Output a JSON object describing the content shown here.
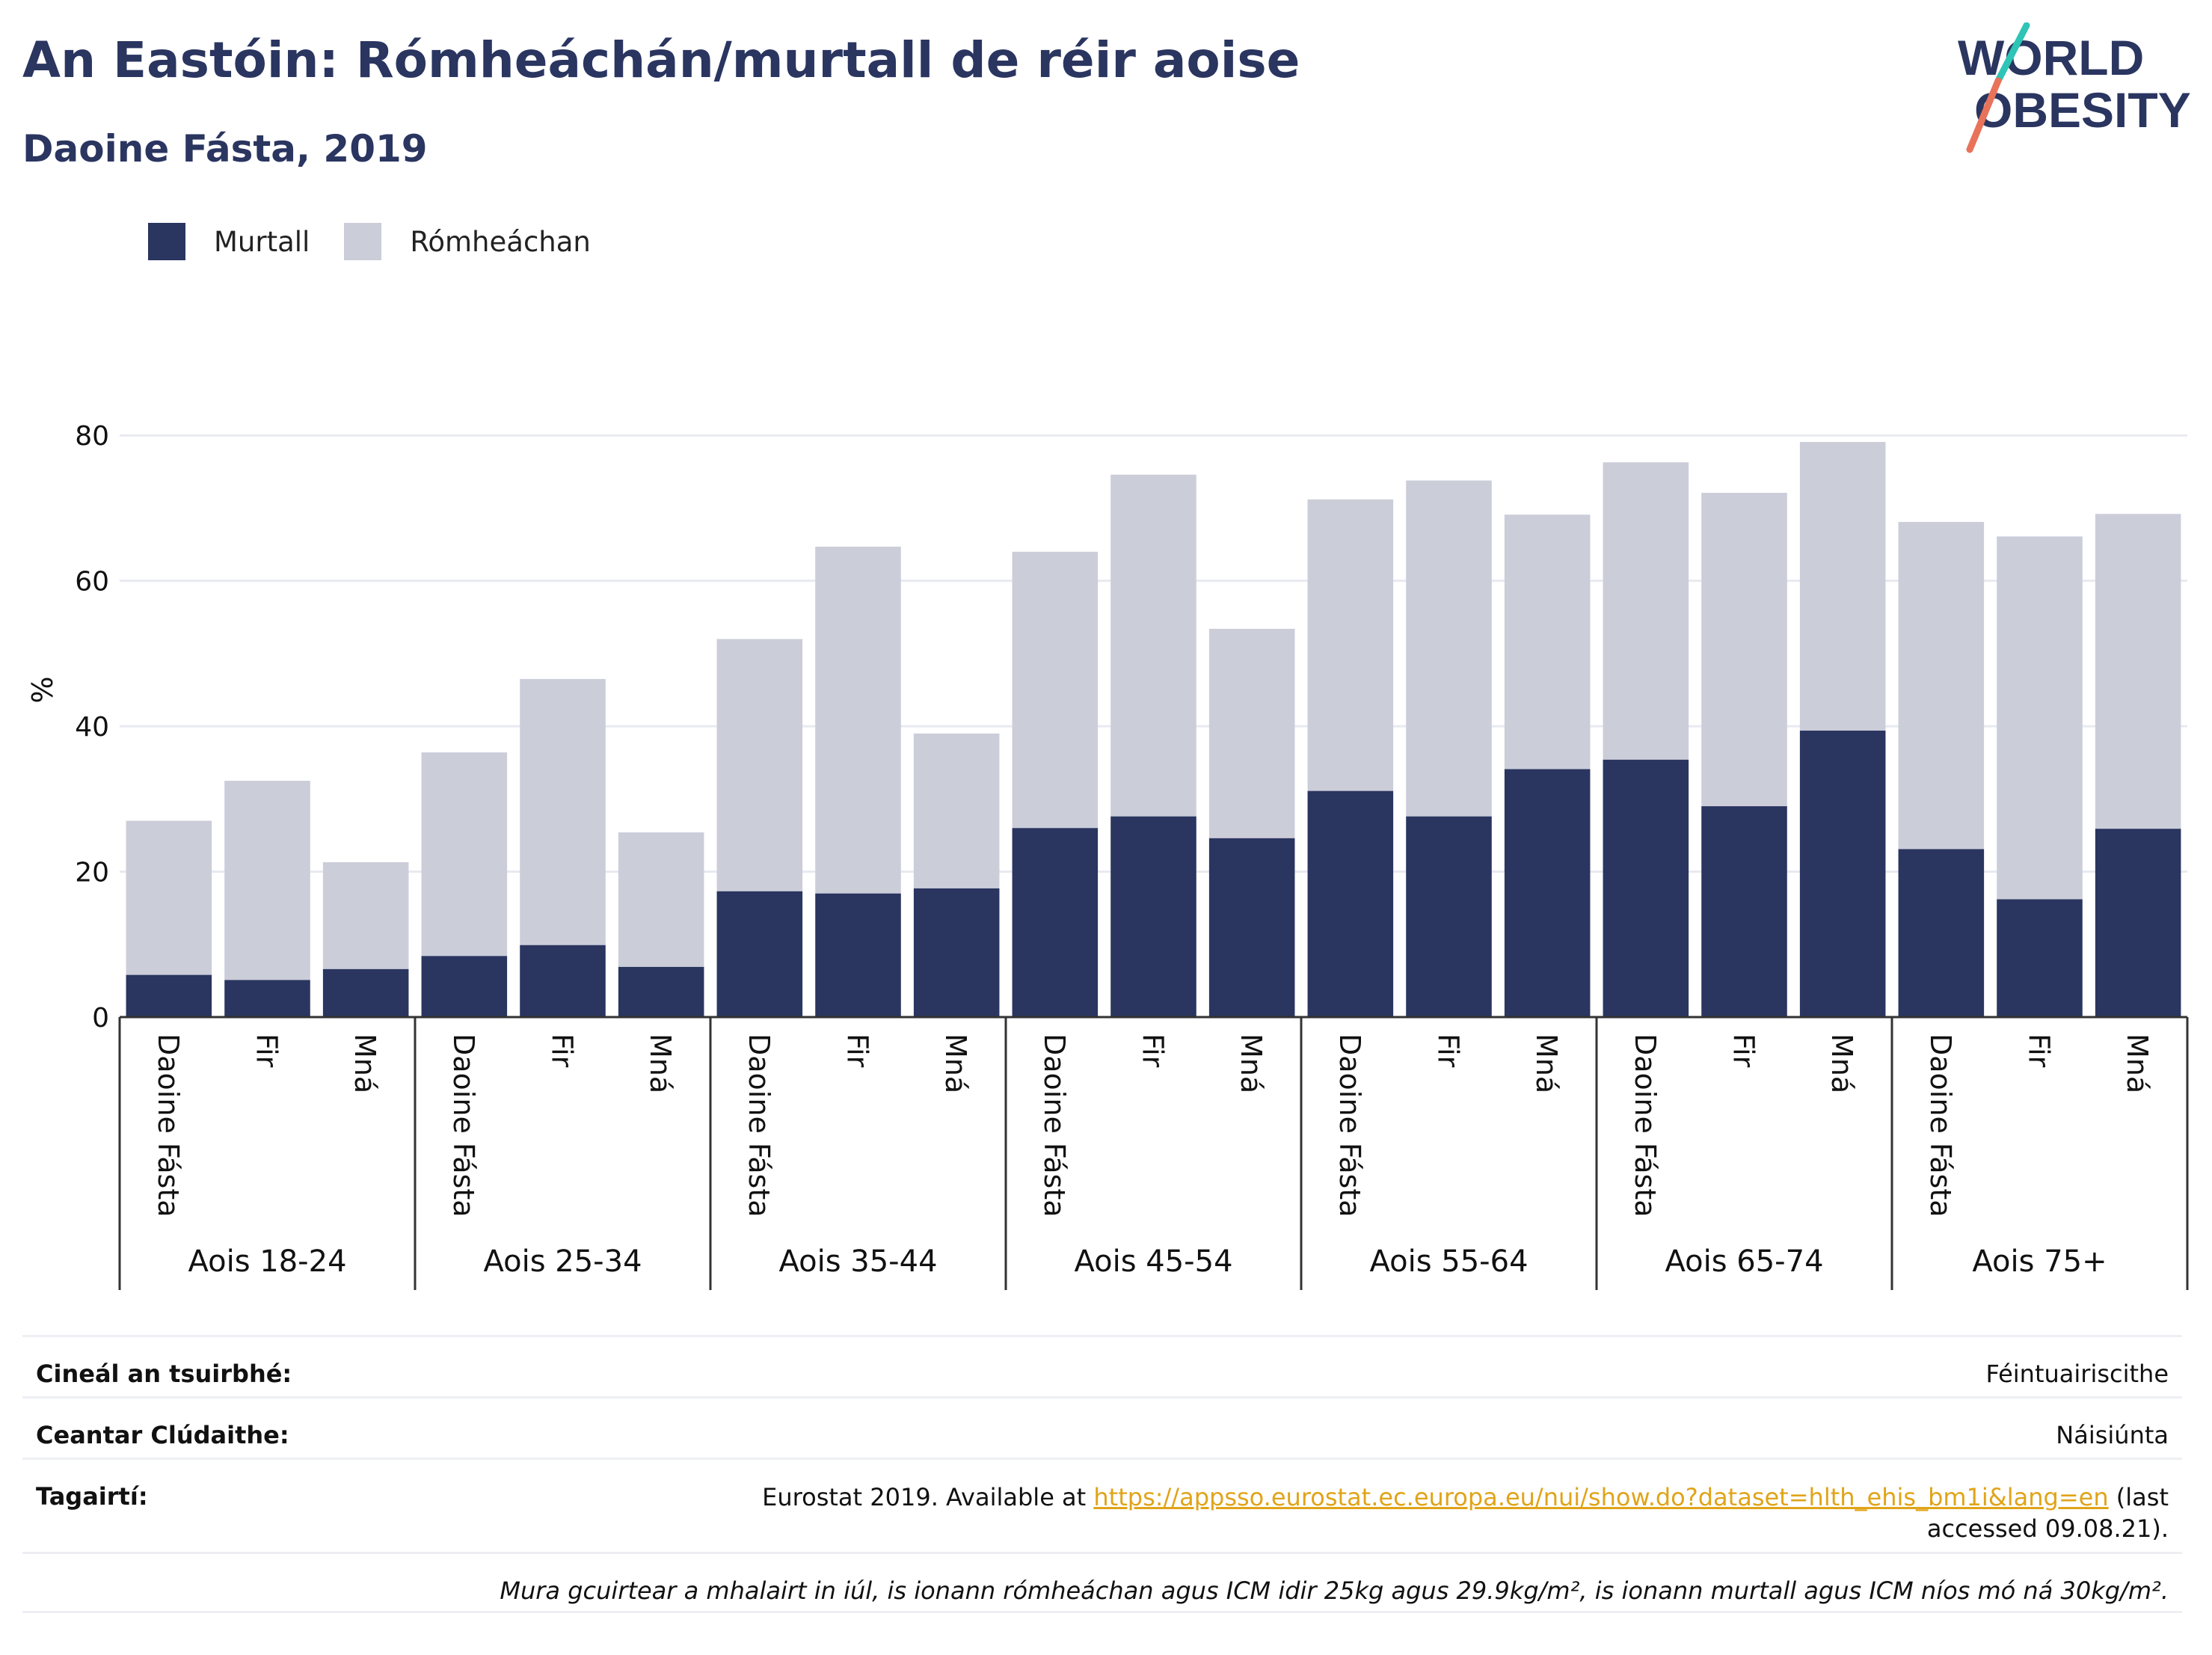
{
  "header": {
    "title": "An Eastóin: Rómheáchán/murtall de réir aoise",
    "subtitle": "Daoine Fásta, 2019"
  },
  "logo": {
    "line1": "WORLD",
    "line2": "OBESITY",
    "slash_colors": [
      "#2ec4b6",
      "#e8735a"
    ]
  },
  "legend": {
    "items": [
      {
        "label": "Murtall",
        "color": "#2a3560"
      },
      {
        "label": "Rómheáchan",
        "color": "#cbcdd9"
      }
    ]
  },
  "chart_data": {
    "type": "bar",
    "stacked": true,
    "ylabel": "%",
    "ylim": [
      0,
      90
    ],
    "yticks": [
      0,
      20,
      40,
      60,
      80
    ],
    "grid": true,
    "legend_position": "top-left",
    "groups": [
      {
        "label": "Aois 18-24",
        "categories": [
          "Daoine Fásta",
          "Fir",
          "Mná"
        ],
        "obesity": [
          5.8,
          5.1,
          6.6
        ],
        "overweight": [
          21.2,
          27.4,
          14.7
        ]
      },
      {
        "label": "Aois 25-34",
        "categories": [
          "Daoine Fásta",
          "Fir",
          "Mná"
        ],
        "obesity": [
          8.4,
          9.9,
          6.9
        ],
        "overweight": [
          28.0,
          36.6,
          18.5
        ]
      },
      {
        "label": "Aois 35-44",
        "categories": [
          "Daoine Fásta",
          "Fir",
          "Mná"
        ],
        "obesity": [
          17.3,
          17.0,
          17.7
        ],
        "overweight": [
          34.7,
          47.7,
          21.3
        ]
      },
      {
        "label": "Aois 45-54",
        "categories": [
          "Daoine Fásta",
          "Fir",
          "Mná"
        ],
        "obesity": [
          26.0,
          27.6,
          24.6
        ],
        "overweight": [
          38.0,
          47.0,
          28.8
        ]
      },
      {
        "label": "Aois 55-64",
        "categories": [
          "Daoine Fásta",
          "Fir",
          "Mná"
        ],
        "obesity": [
          31.1,
          27.6,
          34.1
        ],
        "overweight": [
          40.1,
          46.2,
          35.0
        ]
      },
      {
        "label": "Aois 65-74",
        "categories": [
          "Daoine Fásta",
          "Fir",
          "Mná"
        ],
        "obesity": [
          35.4,
          29.0,
          39.4
        ],
        "overweight": [
          40.9,
          43.1,
          39.7
        ]
      },
      {
        "label": "Aois 75+",
        "categories": [
          "Daoine Fásta",
          "Fir",
          "Mná"
        ],
        "obesity": [
          23.1,
          16.2,
          25.9
        ],
        "overweight": [
          45.0,
          49.9,
          43.3
        ]
      }
    ],
    "series": [
      {
        "name": "Murtall",
        "color": "#2a3560"
      },
      {
        "name": "Rómheáchan",
        "color": "#cbcdd9"
      }
    ]
  },
  "info": {
    "survey_label": "Cineál an tsuirbhé:",
    "survey_value": "Féintuairiscithe",
    "coverage_label": "Ceantar Clúdaithe:",
    "coverage_value": "Náisiúnta",
    "refs_label": "Tagairtí:",
    "refs_prefix": "Eurostat 2019. Available at ",
    "refs_link": "https://appsso.eurostat.ec.europa.eu/nui/show.do?dataset=hlth_ehis_bm1i&lang=en",
    "refs_suffix": " (last accessed 09.08.21).",
    "note": "Mura gcuirtear a mhalairt in iúl, is ionann rómheáchan agus ICM idir 25kg agus 29.9kg/m², is ionann murtall agus ICM níos mó ná 30kg/m²."
  }
}
